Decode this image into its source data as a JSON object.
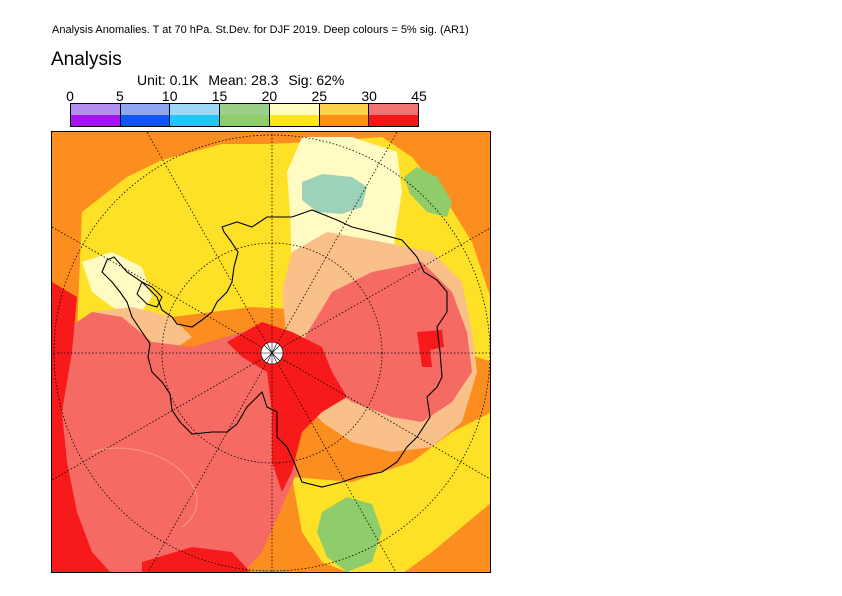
{
  "header": {
    "title": "Analysis Anomalies. T at 70 hPa. St.Dev. for DJF 2019.  Deep colours = 5% sig. (AR1)"
  },
  "panel": {
    "title": "Analysis"
  },
  "stats": {
    "unit": "Unit: 0.1K",
    "mean": "Mean: 28.3",
    "sig": "Sig: 62%"
  },
  "colorbar": {
    "ticks": [
      "0",
      "5",
      "10",
      "15",
      "20",
      "25",
      "30",
      "45"
    ],
    "light_colors": [
      "#b48ef0",
      "#8fa6f3",
      "#9fd9f7",
      "#9bcf8a",
      "#fffbc2",
      "#fdd24b",
      "#f9c08a"
    ],
    "deep_colors": [
      "#a513f3",
      "#0f55f5",
      "#24c6f5",
      "#8fcd6b",
      "#fee41b",
      "#fb8e18",
      "#f71616"
    ],
    "top_extra_color": "#f07472",
    "bottom_extra_color": "#f71616"
  },
  "map": {
    "projection": "south polar stereographic",
    "colors": {
      "orange": "#fb8e1f",
      "yellow": "#fee127",
      "cream": "#fffbc2",
      "tan": "#f9c08a",
      "salmon": "#f56b64",
      "red": "#f71a1a",
      "green": "#8fcd6b",
      "teal": "#9ed2b8"
    }
  }
}
